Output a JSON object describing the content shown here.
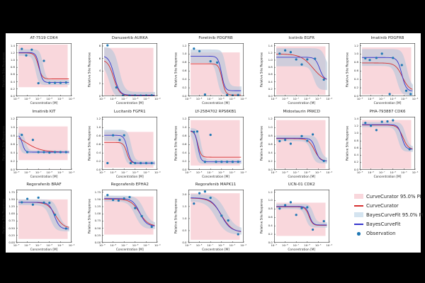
{
  "figure": {
    "background": "#000000",
    "canvas_background": "#ffffff",
    "text_color": "#262626",
    "colors": {
      "curvecurator_line": "#d62f2f",
      "curvecurator_pi_fill": "#f9d7dc",
      "bayescurvefit_line": "#3535cd",
      "bayescurvefit_pi_fill": "#b9c8da",
      "bayescurvefit_pi_legend_fill": "#d4e4f0",
      "observation_marker": "#1f77b4"
    },
    "shared_axes": {
      "xlabel": "Concentration [M]",
      "ylabel": "Relative Site Response",
      "xlim_log10": [
        -9,
        -4
      ],
      "x_tickvals_log10": [
        -9,
        -8,
        -7,
        -6,
        -5,
        -4
      ],
      "x_ticklabels": [
        "10⁻⁹",
        "10⁻⁸",
        "10⁻⁷",
        "10⁻⁶",
        "10⁻⁵",
        "10⁻⁴"
      ]
    }
  },
  "legend": {
    "entries": [
      {
        "swatch": "patch",
        "color": "#f9d7dc",
        "label": "CurveCurator 95.0% PI"
      },
      {
        "swatch": "line",
        "color": "#d62f2f",
        "label": "CurveCurator"
      },
      {
        "swatch": "patch",
        "color": "#d4e4f0",
        "label": "BayesCurveFit 95.0% PI"
      },
      {
        "swatch": "line",
        "color": "#3535cd",
        "label": "BayesCurveFit"
      },
      {
        "swatch": "marker",
        "color": "#1f77b4",
        "label": "Observation"
      }
    ]
  },
  "chart_data": [
    {
      "type": "line",
      "title": "AT-7519 CDK4",
      "row": 0,
      "col": 0,
      "ylim": [
        0,
        1.47
      ],
      "yticks": [
        0,
        0.2,
        0.4,
        0.6,
        0.8,
        1.0,
        1.2,
        1.4
      ],
      "ytick_labels": [
        "0.0",
        "0.2",
        "0.4",
        "0.6",
        "0.8",
        "1.0",
        "1.2",
        "1.4"
      ],
      "curvecurator": {
        "top": 1.2,
        "bottom": 0.48,
        "log_ec50": -7.0,
        "slope": 2.6
      },
      "bayescurvefit": {
        "top": 1.21,
        "bottom": 0.38,
        "log_ec50": -6.92,
        "slope": 3.0
      },
      "curvecurator_pi": {
        "lo": 0.25,
        "hi": 1.43
      },
      "bayescurvefit_pi": {
        "w_top": 0.09,
        "w_bottom": 0.07,
        "x_spread": 0.35
      },
      "observations": [
        [
          -8.5,
          1.31
        ],
        [
          -8.1,
          1.13
        ],
        [
          -7.6,
          1.29
        ],
        [
          -7.0,
          0.36
        ],
        [
          -6.5,
          0.98
        ],
        [
          -6.0,
          0.37
        ],
        [
          -5.5,
          0.37
        ],
        [
          -5.0,
          0.37
        ],
        [
          -4.5,
          0.38
        ]
      ]
    },
    {
      "type": "line",
      "title": "Danusertib AURKA",
      "row": 0,
      "col": 1,
      "ylim": [
        0,
        8.45
      ],
      "yticks": [
        0,
        2,
        4,
        6,
        8
      ],
      "ytick_labels": [
        "0",
        "2",
        "4",
        "6",
        "8"
      ],
      "curvecurator": {
        "top": 5.8,
        "bottom": 0.12,
        "log_ec50": -7.95,
        "slope": 1.7
      },
      "bayescurvefit": {
        "top": 6.45,
        "bottom": 0.18,
        "log_ec50": -7.9,
        "slope": 1.8
      },
      "curvecurator_pi": {
        "lo": 0.15,
        "hi": 7.7
      },
      "bayescurvefit_pi": {
        "w_top": 1.4,
        "w_bottom": 0.5,
        "x_spread": 0.45
      },
      "observations": [
        [
          -8.5,
          8.1
        ],
        [
          -7.7,
          1.4
        ],
        [
          -7.1,
          0.12
        ],
        [
          -6.5,
          0.1
        ],
        [
          -6.0,
          0.12
        ],
        [
          -5.5,
          0.1
        ],
        [
          -5.0,
          0.12
        ],
        [
          -4.5,
          0.14
        ]
      ]
    },
    {
      "type": "line",
      "title": "Foretinib PDGFRB",
      "row": 0,
      "col": 2,
      "ylim": [
        0,
        1.26
      ],
      "yticks": [
        0,
        0.2,
        0.4,
        0.6,
        0.8,
        1.0,
        1.2
      ],
      "ytick_labels": [
        "0.0",
        "0.2",
        "0.4",
        "0.6",
        "0.8",
        "1.0",
        "1.2"
      ],
      "curvecurator": {
        "top": 0.77,
        "bottom": 0.03,
        "log_ec50": -5.95,
        "slope": 2.8
      },
      "bayescurvefit": {
        "top": 0.95,
        "bottom": 0.13,
        "log_ec50": -6.0,
        "slope": 2.8
      },
      "curvecurator_pi": {
        "lo": 0.03,
        "hi": 1.04
      },
      "bayescurvefit_pi": {
        "w_top": 0.16,
        "w_bottom": 0.1,
        "x_spread": 0.4
      },
      "observations": [
        [
          -8.5,
          1.13
        ],
        [
          -8.0,
          1.07
        ],
        [
          -7.5,
          0.04
        ],
        [
          -7.0,
          0.83
        ],
        [
          -6.4,
          0.8
        ],
        [
          -5.5,
          0.03
        ],
        [
          -5.0,
          0.02
        ],
        [
          -4.5,
          0.03
        ]
      ]
    },
    {
      "type": "line",
      "title": "Icotinib EGFR",
      "row": 0,
      "col": 3,
      "ylim": [
        0,
        1.47
      ],
      "yticks": [
        0,
        0.2,
        0.4,
        0.6,
        0.8,
        1.0,
        1.2,
        1.4
      ],
      "ytick_labels": [
        "0.0",
        "0.2",
        "0.4",
        "0.6",
        "0.8",
        "1.0",
        "1.2",
        "1.4"
      ],
      "curvecurator": {
        "top": 1.17,
        "bottom": 0.4,
        "log_ec50": -5.5,
        "slope": 0.8
      },
      "bayescurvefit": {
        "top": 1.08,
        "bottom": 0.45,
        "log_ec50": -4.88,
        "slope": 2.2
      },
      "curvecurator_pi": {
        "lo": 0.04,
        "hi": 1.38
      },
      "bayescurvefit_pi": {
        "w_top": 0.25,
        "w_bottom": 0.28,
        "x_spread": 0.55
      },
      "observations": [
        [
          -8.5,
          1.18
        ],
        [
          -8.0,
          1.27
        ],
        [
          -7.5,
          1.22
        ],
        [
          -7.0,
          1.02
        ],
        [
          -6.5,
          0.88
        ],
        [
          -6.0,
          1.02
        ],
        [
          -5.3,
          1.04
        ],
        [
          -4.5,
          0.46
        ]
      ]
    },
    {
      "type": "line",
      "title": "Imatinib PDGFRB",
      "row": 0,
      "col": 4,
      "ylim": [
        0,
        1.26
      ],
      "yticks": [
        0,
        0.2,
        0.4,
        0.6,
        0.8,
        1.0,
        1.2
      ],
      "ytick_labels": [
        "0.0",
        "0.2",
        "0.4",
        "0.6",
        "0.8",
        "1.0",
        "1.2"
      ],
      "curvecurator": {
        "top": 0.79,
        "bottom": 0.13,
        "log_ec50": -5.15,
        "slope": 1.4
      },
      "bayescurvefit": {
        "top": 0.92,
        "bottom": 0.12,
        "log_ec50": -5.2,
        "slope": 2.2
      },
      "curvecurator_pi": {
        "lo": 0.04,
        "hi": 1.16
      },
      "bayescurvefit_pi": {
        "w_top": 0.2,
        "w_bottom": 0.1,
        "x_spread": 0.45
      },
      "observations": [
        [
          -8.5,
          0.9
        ],
        [
          -8.1,
          0.86
        ],
        [
          -7.5,
          0.91
        ],
        [
          -7.0,
          1.01
        ],
        [
          -6.3,
          0.05
        ],
        [
          -6.0,
          0.91
        ],
        [
          -5.2,
          0.74
        ],
        [
          -4.8,
          0.13
        ],
        [
          -4.4,
          0.05
        ]
      ]
    },
    {
      "type": "line",
      "title": "Imatinib KIT",
      "row": 1,
      "col": 0,
      "ylim": [
        0,
        1.26
      ],
      "yticks": [
        0,
        0.2,
        0.4,
        0.6,
        0.8,
        1.0,
        1.2
      ],
      "ytick_labels": [
        "0.0",
        "0.2",
        "0.4",
        "0.6",
        "0.8",
        "1.0",
        "1.2"
      ],
      "curvecurator": {
        "top": 0.9,
        "bottom": 0.42,
        "log_ec50": -8.2,
        "slope": 0.6
      },
      "bayescurvefit": {
        "top": 0.83,
        "bottom": 0.42,
        "log_ec50": -8.45,
        "slope": 3.5
      },
      "curvecurator_pi": {
        "lo": 0.23,
        "hi": 1.03
      },
      "bayescurvefit_pi": {
        "w_top": 0.05,
        "w_bottom": 0.04,
        "x_spread": 0.3
      },
      "observations": [
        [
          -8.5,
          0.83
        ],
        [
          -8.0,
          0.42
        ],
        [
          -7.5,
          0.71
        ],
        [
          -7.0,
          0.42
        ],
        [
          -6.5,
          0.42
        ],
        [
          -6.0,
          0.41
        ],
        [
          -5.5,
          0.42
        ],
        [
          -5.0,
          0.42
        ],
        [
          -4.5,
          0.42
        ]
      ]
    },
    {
      "type": "line",
      "title": "Lucitanib FGFR1",
      "row": 1,
      "col": 1,
      "ylim": [
        0,
        1.26
      ],
      "yticks": [
        0,
        0.2,
        0.4,
        0.6,
        0.8,
        1.0,
        1.2
      ],
      "ytick_labels": [
        "0.0",
        "0.2",
        "0.4",
        "0.6",
        "0.8",
        "1.0",
        "1.2"
      ],
      "curvecurator": {
        "top": 0.65,
        "bottom": 0.16,
        "log_ec50": -6.75,
        "slope": 2.8
      },
      "bayescurvefit": {
        "top": 0.82,
        "bottom": 0.16,
        "log_ec50": -6.7,
        "slope": 2.8
      },
      "curvecurator_pi": {
        "lo": 0.05,
        "hi": 0.9
      },
      "bayescurvefit_pi": {
        "w_top": 0.13,
        "w_bottom": 0.05,
        "x_spread": 0.35
      },
      "observations": [
        [
          -8.5,
          0.16
        ],
        [
          -8.0,
          0.82
        ],
        [
          -7.4,
          0.71
        ],
        [
          -7.0,
          0.82
        ],
        [
          -6.4,
          0.16
        ],
        [
          -6.0,
          0.16
        ],
        [
          -5.5,
          0.16
        ],
        [
          -5.0,
          0.16
        ],
        [
          -4.5,
          0.16
        ]
      ]
    },
    {
      "type": "line",
      "title": "LY-2584702 RPS6KB1",
      "row": 1,
      "col": 2,
      "ylim": [
        0,
        1.26
      ],
      "yticks": [
        0,
        0.2,
        0.4,
        0.6,
        0.8,
        1.0,
        1.2
      ],
      "ytick_labels": [
        "0.0",
        "0.2",
        "0.4",
        "0.6",
        "0.8",
        "1.0",
        "1.2"
      ],
      "curvecurator": {
        "top": 0.92,
        "bottom": 0.3,
        "log_ec50": -8.15,
        "slope": 3.0
      },
      "bayescurvefit": {
        "top": 0.93,
        "bottom": 0.19,
        "log_ec50": -8.15,
        "slope": 3.2
      },
      "curvecurator_pi": {
        "lo": 0.1,
        "hi": 1.18
      },
      "bayescurvefit_pi": {
        "w_top": 0.06,
        "w_bottom": 0.05,
        "x_spread": 0.3
      },
      "observations": [
        [
          -8.5,
          0.9
        ],
        [
          -8.2,
          0.91
        ],
        [
          -7.5,
          0.19
        ],
        [
          -7.0,
          0.83
        ],
        [
          -6.5,
          0.19
        ],
        [
          -6.0,
          0.19
        ],
        [
          -5.5,
          0.19
        ],
        [
          -5.0,
          0.19
        ],
        [
          -4.5,
          0.19
        ]
      ]
    },
    {
      "type": "line",
      "title": "Midostaurin PRKCD",
      "row": 1,
      "col": 3,
      "ylim": [
        0,
        1.26
      ],
      "yticks": [
        0,
        0.2,
        0.4,
        0.6,
        0.8,
        1.0,
        1.2
      ],
      "ytick_labels": [
        "0.0",
        "0.2",
        "0.4",
        "0.6",
        "0.8",
        "1.0",
        "1.2"
      ],
      "curvecurator": {
        "top": 0.74,
        "bottom": 0.2,
        "log_ec50": -5.35,
        "slope": 1.6
      },
      "bayescurvefit": {
        "top": 0.75,
        "bottom": 0.21,
        "log_ec50": -5.25,
        "slope": 2.4
      },
      "curvecurator_pi": {
        "lo": 0.03,
        "hi": 1.18
      },
      "bayescurvefit_pi": {
        "w_top": 0.07,
        "w_bottom": 0.06,
        "x_spread": 0.4
      },
      "observations": [
        [
          -8.5,
          0.68
        ],
        [
          -8.0,
          0.71
        ],
        [
          -7.5,
          0.62
        ],
        [
          -6.5,
          0.8
        ],
        [
          -6.0,
          0.69
        ],
        [
          -5.5,
          0.84
        ],
        [
          -4.5,
          0.21
        ]
      ]
    },
    {
      "type": "line",
      "title": "PHA-793887 CDK6",
      "row": 1,
      "col": 4,
      "ylim": [
        0,
        1.47
      ],
      "yticks": [
        0,
        0.2,
        0.4,
        0.6,
        0.8,
        1.0,
        1.2,
        1.4
      ],
      "ytick_labels": [
        "0.0",
        "0.2",
        "0.4",
        "0.6",
        "0.8",
        "1.0",
        "1.2",
        "1.4"
      ],
      "curvecurator": {
        "top": 1.24,
        "bottom": 0.56,
        "log_ec50": -5.1,
        "slope": 1.8
      },
      "bayescurvefit": {
        "top": 1.25,
        "bottom": 0.57,
        "log_ec50": -5.2,
        "slope": 2.6
      },
      "curvecurator_pi": {
        "lo": 0.03,
        "hi": 1.38
      },
      "bayescurvefit_pi": {
        "w_top": 0.07,
        "w_bottom": 0.07,
        "x_spread": 0.35
      },
      "observations": [
        [
          -8.5,
          1.3
        ],
        [
          -8.0,
          1.22
        ],
        [
          -7.5,
          1.1
        ],
        [
          -7.0,
          1.33
        ],
        [
          -6.5,
          1.34
        ],
        [
          -6.0,
          1.37
        ],
        [
          -4.5,
          0.57
        ]
      ]
    },
    {
      "type": "line",
      "title": "Regorafenib BRAF",
      "row": 2,
      "col": 0,
      "ylim": [
        0,
        1.84
      ],
      "yticks": [
        0,
        0.25,
        0.5,
        0.75,
        1.0,
        1.25,
        1.5,
        1.75
      ],
      "ytick_labels": [
        "0.00",
        "0.25",
        "0.50",
        "0.75",
        "1.00",
        "1.25",
        "1.50",
        "1.75"
      ],
      "curvecurator": {
        "top": 1.4,
        "bottom": 0.5,
        "log_ec50": -5.45,
        "slope": 1.2
      },
      "bayescurvefit": {
        "top": 1.4,
        "bottom": 0.47,
        "log_ec50": -5.55,
        "slope": 1.8
      },
      "curvecurator_pi": {
        "lo": 0.13,
        "hi": 1.5
      },
      "bayescurvefit_pi": {
        "w_top": 0.1,
        "w_bottom": 0.08,
        "x_spread": 0.4
      },
      "observations": [
        [
          -8.5,
          1.4
        ],
        [
          -8.0,
          1.52
        ],
        [
          -7.5,
          1.32
        ],
        [
          -7.0,
          1.56
        ],
        [
          -6.5,
          1.39
        ],
        [
          -6.0,
          1.38
        ],
        [
          -5.5,
          0.97
        ],
        [
          -4.5,
          0.49
        ]
      ]
    },
    {
      "type": "line",
      "title": "Regorafenib EPHA2",
      "row": 2,
      "col": 1,
      "ylim": [
        0,
        1.84
      ],
      "yticks": [
        0,
        0.25,
        0.5,
        0.75,
        1.0,
        1.25,
        1.5,
        1.75
      ],
      "ytick_labels": [
        "0.00",
        "0.25",
        "0.50",
        "0.75",
        "1.00",
        "1.25",
        "1.50",
        "1.75"
      ],
      "curvecurator": {
        "top": 1.51,
        "bottom": 0.57,
        "log_ec50": -5.6,
        "slope": 1.1
      },
      "bayescurvefit": {
        "top": 1.53,
        "bottom": 0.57,
        "log_ec50": -5.6,
        "slope": 1.4
      },
      "curvecurator_pi": {
        "lo": 0.28,
        "hi": 1.6
      },
      "bayescurvefit_pi": {
        "w_top": 0.1,
        "w_bottom": 0.1,
        "x_spread": 0.4
      },
      "observations": [
        [
          -8.5,
          1.65
        ],
        [
          -8.0,
          1.48
        ],
        [
          -7.5,
          1.46
        ],
        [
          -7.0,
          1.53
        ],
        [
          -6.5,
          1.58
        ],
        [
          -6.0,
          1.2
        ],
        [
          -5.4,
          0.92
        ],
        [
          -4.5,
          0.55
        ]
      ]
    },
    {
      "type": "line",
      "title": "Regorafenib MAPK11",
      "row": 2,
      "col": 2,
      "ylim": [
        0,
        2.2
      ],
      "yticks": [
        0,
        0.5,
        1.0,
        1.5,
        2.0
      ],
      "ytick_labels": [
        "0.0",
        "0.5",
        "1.0",
        "1.5",
        "2.0"
      ],
      "curvecurator": {
        "top": 1.85,
        "bottom": 0.42,
        "log_ec50": -6.0,
        "slope": 0.9
      },
      "bayescurvefit": {
        "top": 1.86,
        "bottom": 0.45,
        "log_ec50": -6.05,
        "slope": 1.0
      },
      "curvecurator_pi": {
        "lo": 0.12,
        "hi": 2.05
      },
      "bayescurvefit_pi": {
        "w_top": 0.15,
        "w_bottom": 0.12,
        "x_spread": 0.45
      },
      "observations": [
        [
          -8.5,
          1.62
        ],
        [
          -8.0,
          2.05
        ],
        [
          -7.5,
          2.12
        ],
        [
          -7.0,
          1.86
        ],
        [
          -6.0,
          1.12
        ],
        [
          -5.4,
          0.92
        ],
        [
          -4.5,
          0.35
        ]
      ]
    },
    {
      "type": "line",
      "title": "UCN-01 CDK2",
      "row": 2,
      "col": 3,
      "ylim": [
        0,
        1.26
      ],
      "yticks": [
        0,
        0.2,
        0.4,
        0.6,
        0.8,
        1.0,
        1.2
      ],
      "ytick_labels": [
        "0.0",
        "0.2",
        "0.4",
        "0.6",
        "0.8",
        "1.0",
        "1.2"
      ],
      "curvecurator": {
        "top": 0.85,
        "bottom": 0.41,
        "log_ec50": -5.85,
        "slope": 2.6
      },
      "bayescurvefit": {
        "top": 0.86,
        "bottom": 0.42,
        "log_ec50": -5.8,
        "slope": 2.8
      },
      "curvecurator_pi": {
        "lo": 0.16,
        "hi": 0.95
      },
      "bayescurvefit_pi": {
        "w_top": 0.06,
        "w_bottom": 0.06,
        "x_spread": 0.35
      },
      "observations": [
        [
          -8.5,
          0.81
        ],
        [
          -8.0,
          0.89
        ],
        [
          -7.5,
          0.96
        ],
        [
          -7.0,
          0.66
        ],
        [
          -6.5,
          0.82
        ],
        [
          -6.0,
          0.84
        ],
        [
          -5.5,
          0.31
        ],
        [
          -4.5,
          0.51
        ]
      ]
    }
  ]
}
